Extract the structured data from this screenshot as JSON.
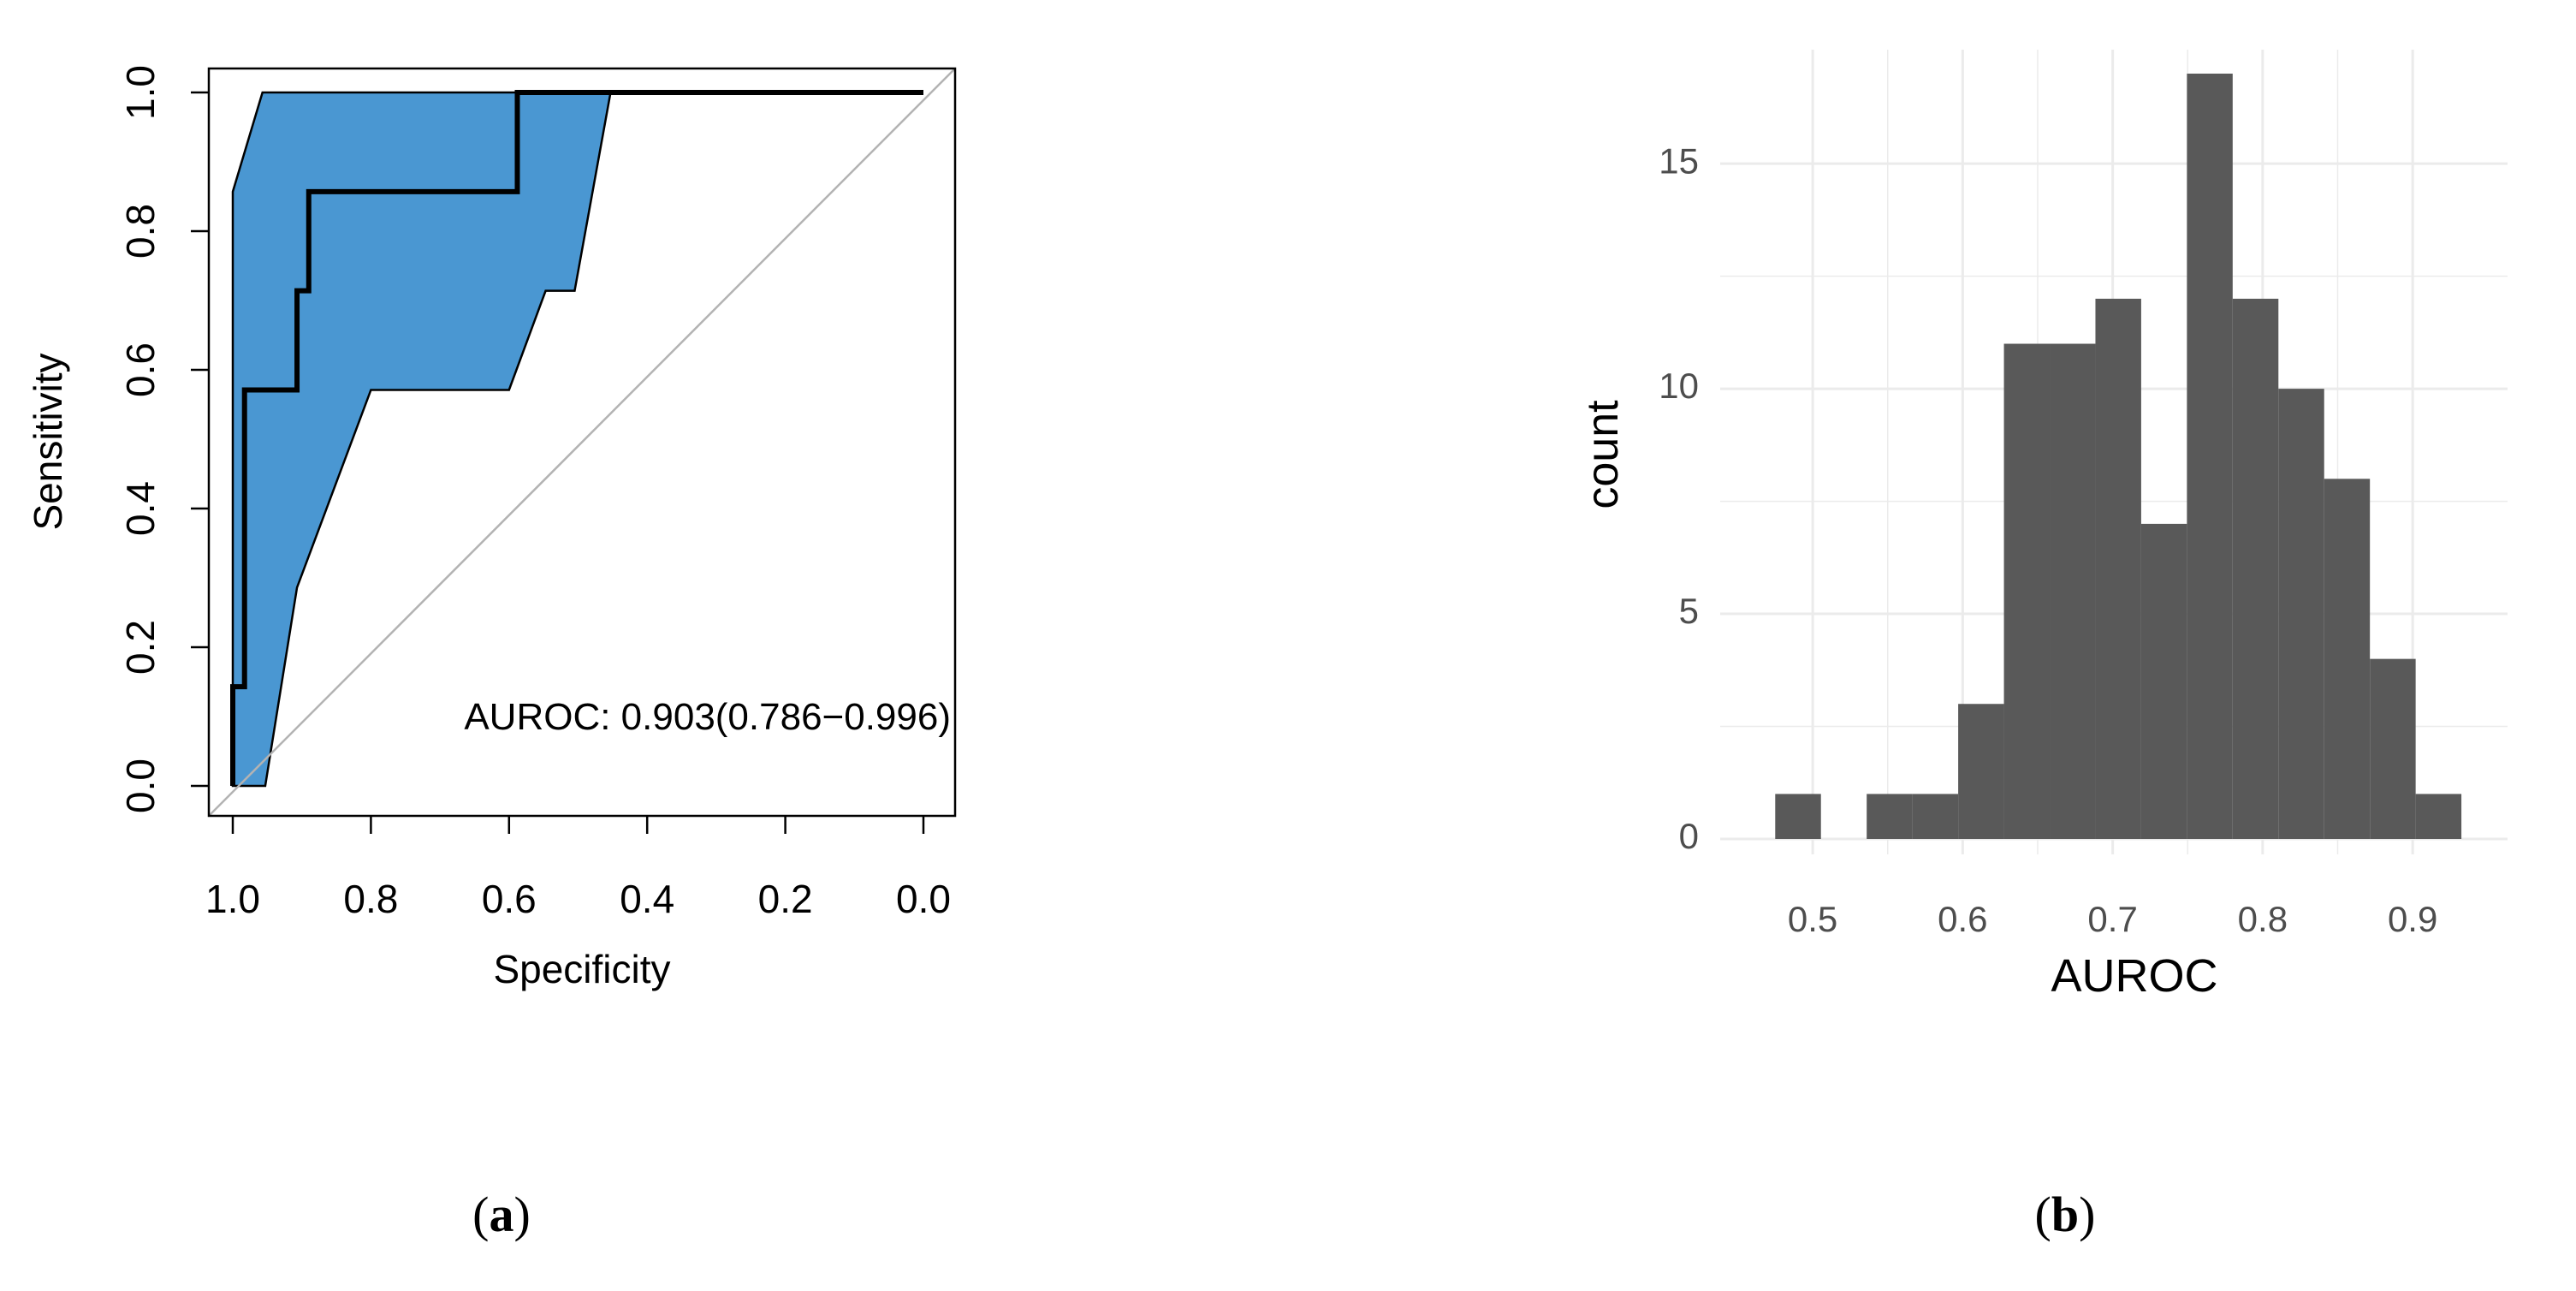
{
  "panels": [
    {
      "label_open": "(",
      "label_letter": "a",
      "label_close": ")"
    },
    {
      "label_open": "(",
      "label_letter": "b",
      "label_close": ")"
    }
  ],
  "colors": {
    "ci_fill": "#4a97d2",
    "roc_line": "#000000",
    "diagonal": "#b3b3b3",
    "histogram_bar": "#595959",
    "gg_panel": "#ffffff",
    "gg_grid": "#ebebeb",
    "tick_text_b": "#4d4d4d"
  },
  "chart_data": [
    {
      "type": "line",
      "xlabel": "Specificity",
      "ylabel": "Sensitivity",
      "xlim": [
        1.0,
        0.0
      ],
      "ylim": [
        0.0,
        1.0
      ],
      "x_reversed": true,
      "grid": false,
      "xticks": [
        "1.0",
        "0.8",
        "0.6",
        "0.4",
        "0.2",
        "0.0"
      ],
      "xtick_values": [
        1.0,
        0.8,
        0.6,
        0.4,
        0.2,
        0.0
      ],
      "yticks": [
        "0.0",
        "0.2",
        "0.4",
        "0.6",
        "0.8",
        "1.0"
      ],
      "ytick_values": [
        0.0,
        0.2,
        0.4,
        0.6,
        0.8,
        1.0
      ],
      "annotation": "AUROC: 0.903(0.786−0.996)",
      "roc_curve": [
        {
          "specificity": 1.0,
          "sensitivity": 0.0
        },
        {
          "specificity": 1.0,
          "sensitivity": 0.143
        },
        {
          "specificity": 0.983,
          "sensitivity": 0.143
        },
        {
          "specificity": 0.983,
          "sensitivity": 0.571
        },
        {
          "specificity": 0.907,
          "sensitivity": 0.571
        },
        {
          "specificity": 0.907,
          "sensitivity": 0.714
        },
        {
          "specificity": 0.89,
          "sensitivity": 0.714
        },
        {
          "specificity": 0.89,
          "sensitivity": 0.857
        },
        {
          "specificity": 0.588,
          "sensitivity": 0.857
        },
        {
          "specificity": 0.588,
          "sensitivity": 1.0
        },
        {
          "specificity": 0.0,
          "sensitivity": 1.0
        }
      ],
      "ci_band_upper": [
        {
          "specificity": 1.0,
          "sensitivity": 0.857
        },
        {
          "specificity": 0.957,
          "sensitivity": 1.0
        },
        {
          "specificity": 0.0,
          "sensitivity": 1.0
        }
      ],
      "ci_band_lower": [
        {
          "specificity": 0.453,
          "sensitivity": 1.0
        },
        {
          "specificity": 0.505,
          "sensitivity": 0.714
        },
        {
          "specificity": 0.547,
          "sensitivity": 0.714
        },
        {
          "specificity": 0.6,
          "sensitivity": 0.571
        },
        {
          "specificity": 0.8,
          "sensitivity": 0.571
        },
        {
          "specificity": 0.907,
          "sensitivity": 0.286
        },
        {
          "specificity": 0.953,
          "sensitivity": 0.0
        },
        {
          "specificity": 1.0,
          "sensitivity": 0.0
        }
      ],
      "reference_line": [
        [
          1.0,
          0.0
        ],
        [
          0.0,
          1.0
        ]
      ]
    },
    {
      "type": "bar",
      "xlabel": "AUROC",
      "ylabel": "count",
      "xlim": [
        0.46,
        0.945
      ],
      "ylim": [
        0,
        17.6
      ],
      "grid": true,
      "xticks": [
        "0.5",
        "0.6",
        "0.7",
        "0.8",
        "0.9"
      ],
      "xtick_values": [
        0.5,
        0.6,
        0.7,
        0.8,
        0.9
      ],
      "yticks": [
        "0",
        "5",
        "10",
        "15"
      ],
      "ytick_values": [
        0,
        5,
        10,
        15
      ],
      "bin_starts": [
        0.475,
        0.5055,
        0.536,
        0.5665,
        0.597,
        0.6275,
        0.658,
        0.6885,
        0.719,
        0.7495,
        0.78,
        0.8105,
        0.841,
        0.8715,
        0.902
      ],
      "bin_width": 0.0305,
      "values": [
        1,
        0,
        1,
        1,
        3,
        11,
        11,
        12,
        7,
        17,
        12,
        10,
        8,
        4,
        1
      ]
    }
  ]
}
